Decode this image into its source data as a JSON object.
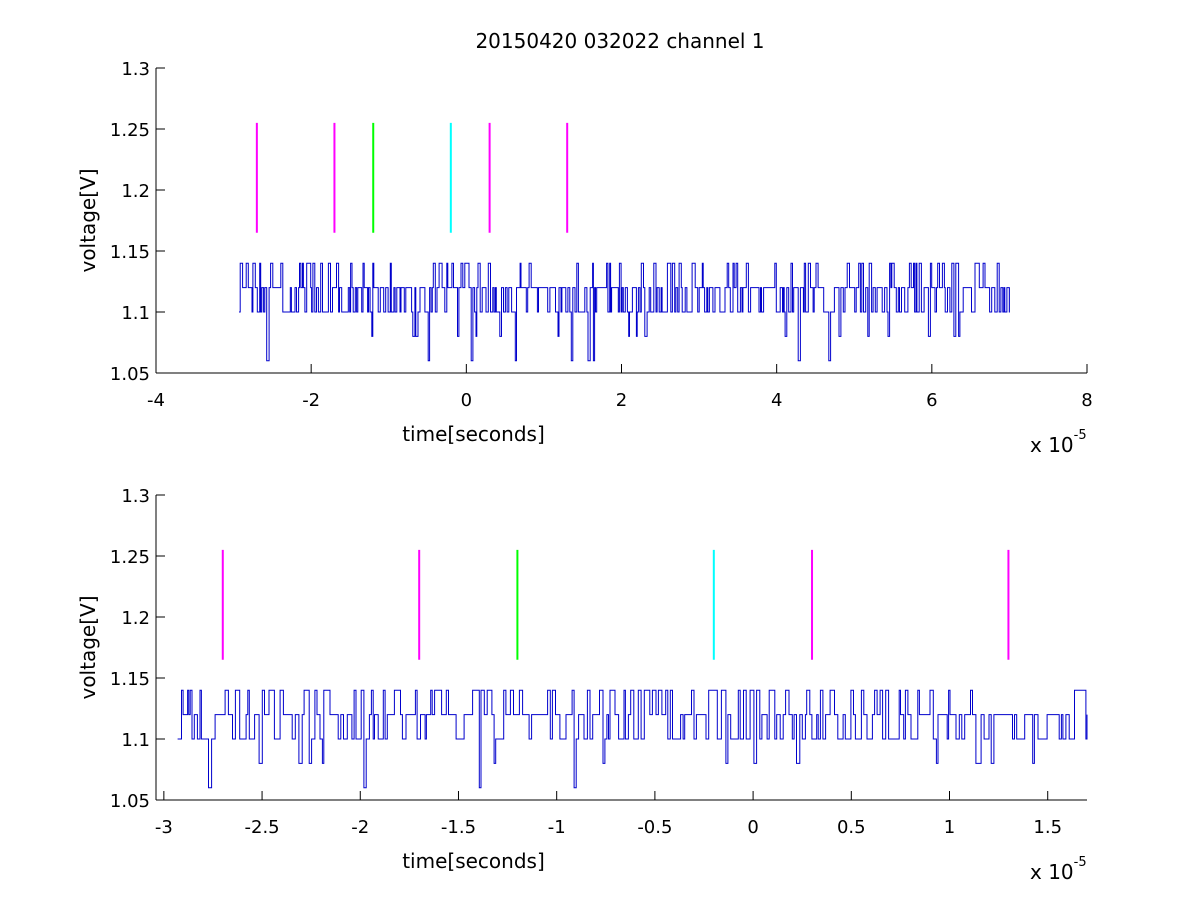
{
  "figure": {
    "title": "20150420 032022 channel 1"
  },
  "chart_data": [
    {
      "type": "line",
      "title": "20150420 032022 channel 1",
      "xlabel": "time[seconds]",
      "ylabel": "voltage[V]",
      "x_scale_note": {
        "prefix": "x 10",
        "exponent": "-5"
      },
      "xlim": [
        -4e-05,
        8e-05
      ],
      "ylim": [
        1.05,
        1.3
      ],
      "xticks": [
        -4e-05,
        -2e-05,
        0,
        2e-05,
        4e-05,
        6e-05,
        8e-05
      ],
      "xtick_labels": [
        "-4",
        "-2",
        "0",
        "2",
        "4",
        "6",
        "8"
      ],
      "yticks": [
        1.05,
        1.1,
        1.15,
        1.2,
        1.25,
        1.3
      ],
      "ytick_labels": [
        "1.05",
        "1.1",
        "1.15",
        "1.2",
        "1.25",
        "1.3"
      ],
      "grid": false,
      "signal": {
        "color": "#0000cc",
        "x_range": [
          -2.93e-05,
          7e-05
        ],
        "levels": [
          1.06,
          1.08,
          1.1,
          1.12,
          1.14
        ],
        "baseline": 1.1
      },
      "markers": [
        {
          "x": -2.7e-05,
          "y": [
            1.165,
            1.255
          ],
          "color": "#ff00ff"
        },
        {
          "x": -1.7e-05,
          "y": [
            1.165,
            1.255
          ],
          "color": "#ff00ff"
        },
        {
          "x": -1.2e-05,
          "y": [
            1.165,
            1.255
          ],
          "color": "#00ff00"
        },
        {
          "x": -2e-06,
          "y": [
            1.165,
            1.255
          ],
          "color": "#00ffff"
        },
        {
          "x": 3e-06,
          "y": [
            1.165,
            1.255
          ],
          "color": "#ff00ff"
        },
        {
          "x": 1.3e-05,
          "y": [
            1.165,
            1.255
          ],
          "color": "#ff00ff"
        }
      ]
    },
    {
      "type": "line",
      "title": "",
      "xlabel": "time[seconds]",
      "ylabel": "voltage[V]",
      "x_scale_note": {
        "prefix": "x 10",
        "exponent": "-5"
      },
      "xlim": [
        -3.04e-05,
        1.7e-05
      ],
      "ylim": [
        1.05,
        1.3
      ],
      "xticks": [
        -3e-05,
        -2.5e-05,
        -2e-05,
        -1.5e-05,
        -1e-05,
        -5e-06,
        0,
        5e-06,
        1e-05,
        1.5e-05
      ],
      "xtick_labels": [
        "-3",
        "-2.5",
        "-2",
        "-1.5",
        "-1",
        "-0.5",
        "0",
        "0.5",
        "1",
        "1.5"
      ],
      "yticks": [
        1.05,
        1.1,
        1.15,
        1.2,
        1.25,
        1.3
      ],
      "ytick_labels": [
        "1.05",
        "1.1",
        "1.15",
        "1.2",
        "1.25",
        "1.3"
      ],
      "grid": false,
      "signal": {
        "color": "#0000cc",
        "x_range": [
          -2.93e-05,
          1.7e-05
        ],
        "levels": [
          1.06,
          1.08,
          1.1,
          1.12,
          1.14
        ],
        "baseline": 1.1
      },
      "markers": [
        {
          "x": -2.7e-05,
          "y": [
            1.165,
            1.255
          ],
          "color": "#ff00ff"
        },
        {
          "x": -1.7e-05,
          "y": [
            1.165,
            1.255
          ],
          "color": "#ff00ff"
        },
        {
          "x": -1.2e-05,
          "y": [
            1.165,
            1.255
          ],
          "color": "#00ff00"
        },
        {
          "x": -2e-06,
          "y": [
            1.165,
            1.255
          ],
          "color": "#00ffff"
        },
        {
          "x": 3e-06,
          "y": [
            1.165,
            1.255
          ],
          "color": "#ff00ff"
        },
        {
          "x": 1.3e-05,
          "y": [
            1.165,
            1.255
          ],
          "color": "#ff00ff"
        }
      ]
    }
  ]
}
